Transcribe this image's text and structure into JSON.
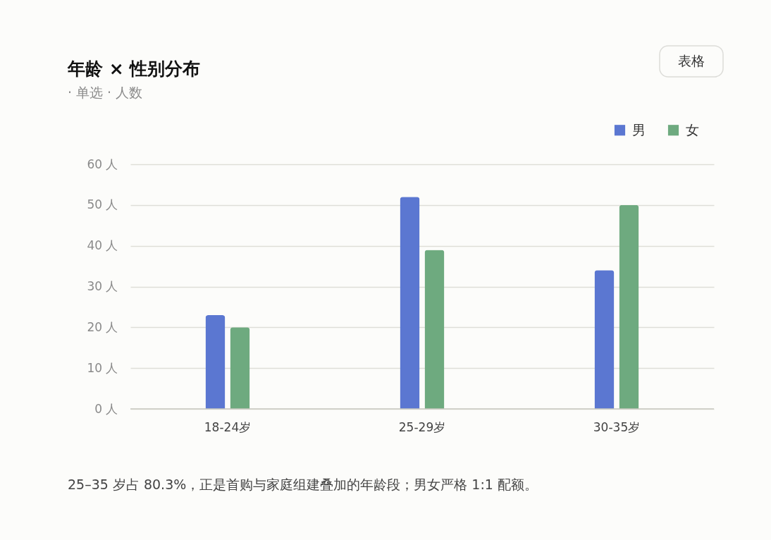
{
  "chart_data": {
    "type": "bar",
    "title": "年龄 × 性别分布",
    "subtitle": "· 单选 · 人数",
    "categories": [
      "18-24岁",
      "25-29岁",
      "30-35岁"
    ],
    "series": [
      {
        "name": "男",
        "color": "#5b77d1",
        "values": [
          23,
          52,
          34
        ]
      },
      {
        "name": "女",
        "color": "#6eaa7f",
        "values": [
          20,
          39,
          50
        ]
      }
    ],
    "ylim": [
      0,
      60
    ],
    "yticks": [
      {
        "value": 0,
        "label": "0 人"
      },
      {
        "value": 10,
        "label": "10 人"
      },
      {
        "value": 20,
        "label": "20 人"
      },
      {
        "value": 30,
        "label": "30 人"
      },
      {
        "value": 40,
        "label": "40 人"
      },
      {
        "value": 50,
        "label": "50 人"
      },
      {
        "value": 60,
        "label": "60 人"
      }
    ],
    "grid": "y",
    "legend": "top right",
    "annotations": [
      "表格",
      "25–35 岁占 80.3%，正是首购与家庭组建叠加的年龄段；男女严格 1:1 配额。"
    ]
  }
}
